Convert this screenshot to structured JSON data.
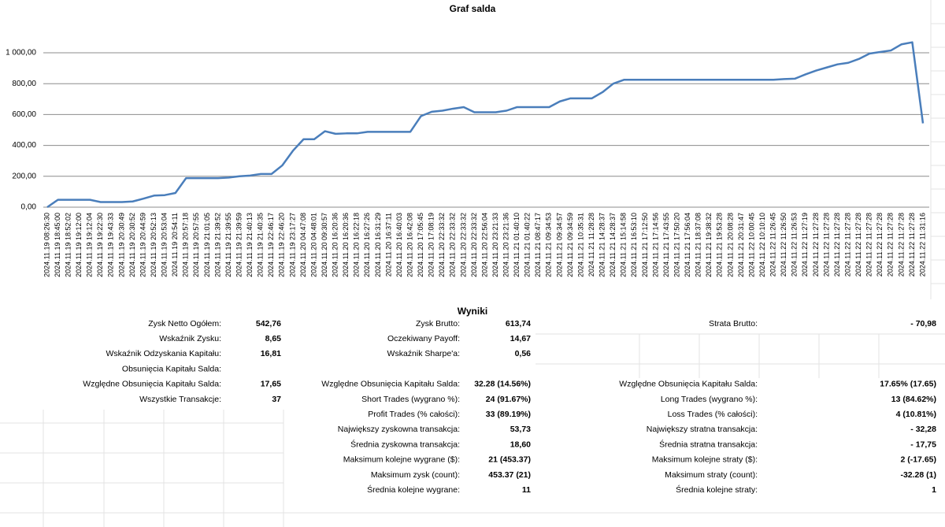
{
  "chart_data": {
    "type": "line",
    "title": "Graf salda",
    "categories": [
      "2024.11.19 08:26:30",
      "2024.11.19 18:45:00",
      "2024.11.19 18:52:02",
      "2024.11.19 19:12:00",
      "2024.11.19 19:12:04",
      "2024.11.19 19:22:30",
      "2024.11.19 19:43:33",
      "2024.11.19 20:30:49",
      "2024.11.19 20:30:52",
      "2024.11.19 20:44:59",
      "2024.11.19 20:52:13",
      "2024.11.19 20:53:04",
      "2024.11.19 20:54:11",
      "2024.11.19 20:57:18",
      "2024.11.19 20:57:55",
      "2024.11.19 21:01:05",
      "2024.11.19 21:39:52",
      "2024.11.19 21:39:55",
      "2024.11.19 21:39:59",
      "2024.11.19 21:40:13",
      "2024.11.19 21:40:35",
      "2024.11.19 22:46:17",
      "2024.11.19 22:46:20",
      "2024.11.19 23:17:27",
      "2024.11.20 04:47:08",
      "2024.11.20 04:48:01",
      "2024.11.20 09:30:57",
      "2024.11.20 16:20:36",
      "2024.11.20 16:20:36",
      "2024.11.20 16:22:18",
      "2024.11.20 16:27:26",
      "2024.11.20 16:31:29",
      "2024.11.20 16:37:11",
      "2024.11.20 16:40:03",
      "2024.11.20 16:42:08",
      "2024.11.20 17:05:45",
      "2024.11.20 17:08:19",
      "2024.11.20 22:33:32",
      "2024.11.20 22:33:32",
      "2024.11.20 22:33:32",
      "2024.11.20 22:33:32",
      "2024.11.20 22:56:04",
      "2024.11.20 23:21:33",
      "2024.11.20 23:21:36",
      "2024.11.21 01:40:10",
      "2024.11.21 01:40:22",
      "2024.11.21 08:47:17",
      "2024.11.21 09:34:53",
      "2024.11.21 09:34:57",
      "2024.11.21 09:34:59",
      "2024.11.21 10:35:31",
      "2024.11.21 11:28:28",
      "2024.11.21 14:28:37",
      "2024.11.21 14:28:37",
      "2024.11.21 15:14:58",
      "2024.11.21 16:53:10",
      "2024.11.21 17:12:50",
      "2024.11.21 17:14:56",
      "2024.11.21 17:43:55",
      "2024.11.21 17:50:20",
      "2024.11.21 17:56:04",
      "2024.11.21 18:37:08",
      "2024.11.21 19:38:32",
      "2024.11.21 19:53:28",
      "2024.11.21 20:08:28",
      "2024.11.21 20:31:47",
      "2024.11.22 10:00:45",
      "2024.11.22 10:10:10",
      "2024.11.22 11:26:45",
      "2024.11.22 11:26:50",
      "2024.11.22 11:26:53",
      "2024.11.22 11:27:19",
      "2024.11.22 11:27:28",
      "2024.11.22 11:27:28",
      "2024.11.22 11:27:28",
      "2024.11.22 11:27:28",
      "2024.11.22 11:27:28",
      "2024.11.22 11:27:28",
      "2024.11.22 11:27:28",
      "2024.11.22 11:27:28",
      "2024.11.22 11:27:28",
      "2024.11.22 11:27:28",
      "2024.11.22 11:31:16"
    ],
    "values": [
      0,
      48,
      48,
      48,
      48,
      33,
      33,
      33,
      37,
      55,
      75,
      78,
      92,
      188,
      188,
      188,
      188,
      192,
      200,
      205,
      215,
      215,
      270,
      365,
      440,
      440,
      492,
      475,
      478,
      478,
      488,
      488,
      488,
      488,
      488,
      590,
      618,
      625,
      638,
      648,
      615,
      615,
      615,
      625,
      648,
      648,
      648,
      648,
      685,
      705,
      705,
      705,
      745,
      800,
      825,
      825,
      825,
      825,
      825,
      825,
      825,
      825,
      825,
      825,
      825,
      825,
      825,
      825,
      825,
      830,
      832,
      860,
      885,
      905,
      925,
      935,
      960,
      995,
      1005,
      1015,
      1055,
      1068,
      543
    ],
    "color": "#4a7ebb",
    "ylim": [
      0,
      1150
    ],
    "yticks": [
      {
        "value": 0,
        "label": "0,00"
      },
      {
        "value": 200,
        "label": "200,00"
      },
      {
        "value": 400,
        "label": "400,00"
      },
      {
        "value": 600,
        "label": "600,00"
      },
      {
        "value": 800,
        "label": "800,00"
      },
      {
        "value": 1000,
        "label": "1 000,00"
      }
    ],
    "grid": true
  },
  "results": {
    "title": "Wyniki",
    "columns": [
      [
        {
          "label": "Zysk Netto Ogółem:",
          "value": "542,76"
        },
        {
          "label": "Wskaźnik Zysku:",
          "value": "8,65"
        },
        {
          "label": "Wskaźnik Odzyskania Kapitału:",
          "value": "16,81"
        },
        {
          "label": "Obsunięcia Kapitału Salda:"
        },
        {
          "label": "Względne Obsunięcia Kapitału Salda:",
          "value": "17,65"
        },
        {
          "label": "Wszystkie Transakcje:",
          "value": "37"
        }
      ],
      [
        {
          "label": "Zysk Brutto:",
          "value": "613,74"
        },
        {
          "label": "Oczekiwany Payoff:",
          "value": "14,67"
        },
        {
          "label": "Wskaźnik Sharpe'a:",
          "value": "0,56"
        },
        {
          "label": "Względne Obsunięcia Kapitału Salda:",
          "value": "32.28 (14.56%)"
        },
        {
          "label": "Short Trades (wygrano %):",
          "value": "24 (91.67%)"
        },
        {
          "label": "Profit Trades (% całości):",
          "value": "33 (89.19%)"
        },
        {
          "label": "Największy zyskowna transakcja:",
          "value": "53,73"
        },
        {
          "label": "Średnia zyskowna transakcja:",
          "value": "18,60"
        },
        {
          "label": "Maksimum kolejne wygrane ($):",
          "value": "21 (453.37)"
        },
        {
          "label": "Maksimum zysk (count):",
          "value": "453.37 (21)"
        },
        {
          "label": "Średnia kolejne wygrane:",
          "value": "11"
        }
      ],
      [
        {
          "label": "Strata Brutto:",
          "value": "- 70,98"
        },
        {
          "label": "Względne Obsunięcia Kapitału Salda:",
          "value": "17.65% (17.65)"
        },
        {
          "label": "Long Trades (wygrano %):",
          "value": "13 (84.62%)"
        },
        {
          "label": "Loss Trades (% całości):",
          "value": "4 (10.81%)"
        },
        {
          "label": "Największy stratna transakcja:",
          "value": "- 32,28"
        },
        {
          "label": "Średnia stratna transakcja:",
          "value": "- 17,75"
        },
        {
          "label": "Maksimum kolejne straty ($):",
          "value": "2 (-17.65)"
        },
        {
          "label": "Maksimum straty (count):",
          "value": "-32.28 (1)"
        },
        {
          "label": "Średnia kolejne straty:",
          "value": "1"
        }
      ]
    ]
  }
}
